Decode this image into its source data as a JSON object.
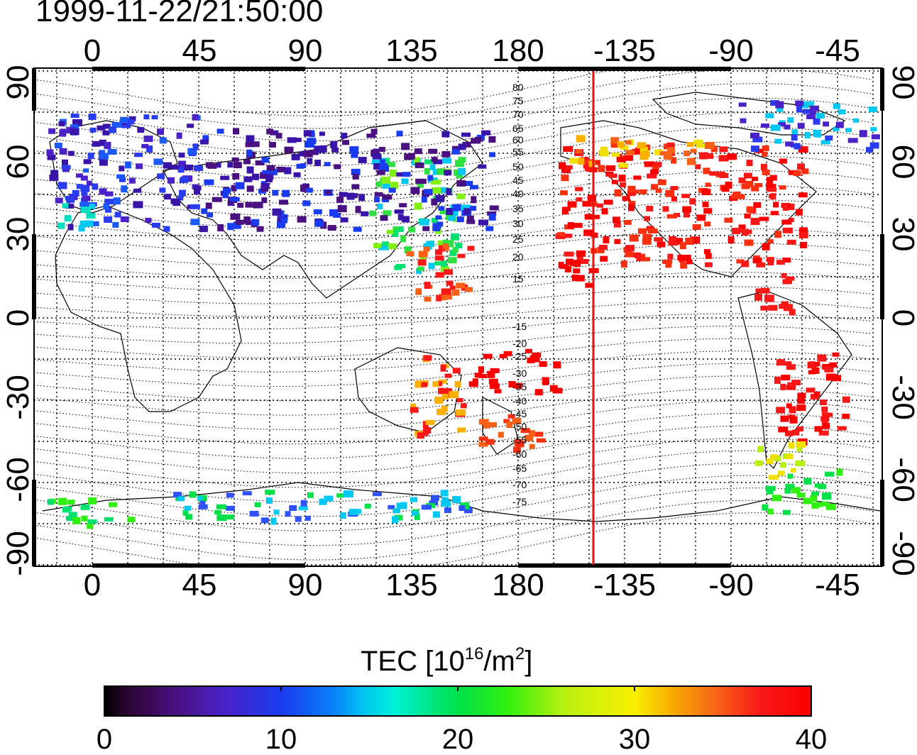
{
  "title": "1999-11-22/21:50:00",
  "axes": {
    "top_ticks": [
      "0",
      "45",
      "90",
      "135",
      "180",
      "-135",
      "-90",
      "-45"
    ],
    "bottom_ticks": [
      "0",
      "45",
      "90",
      "135",
      "180",
      "-135",
      "-90",
      "-45"
    ],
    "left_ticks": [
      "90",
      "60",
      "30",
      "0",
      "-30",
      "-60",
      "-90"
    ],
    "right_ticks": [
      "90",
      "60",
      "30",
      "0",
      "-30",
      "-60",
      "-90"
    ]
  },
  "contour_labels": [
    "80",
    "75",
    "70",
    "65",
    "60",
    "55",
    "50",
    "45",
    "40",
    "35",
    "30",
    "25",
    "20",
    "15",
    "-15",
    "-20",
    "-25",
    "-30",
    "-35",
    "-40",
    "-45",
    "-50",
    "-55",
    "-60",
    "-65",
    "-70",
    "-75"
  ],
  "colorbar": {
    "title_prefix": "TEC  [10",
    "title_exp1": "16",
    "title_mid": "/m",
    "title_exp2": "2",
    "title_suffix": "]",
    "ticks": [
      "0",
      "10",
      "20",
      "30",
      "40"
    ],
    "range": [
      0,
      40
    ]
  },
  "colors": {
    "terminator_line": "#e81010",
    "low": "#2a0530",
    "high": "#f80000"
  }
}
